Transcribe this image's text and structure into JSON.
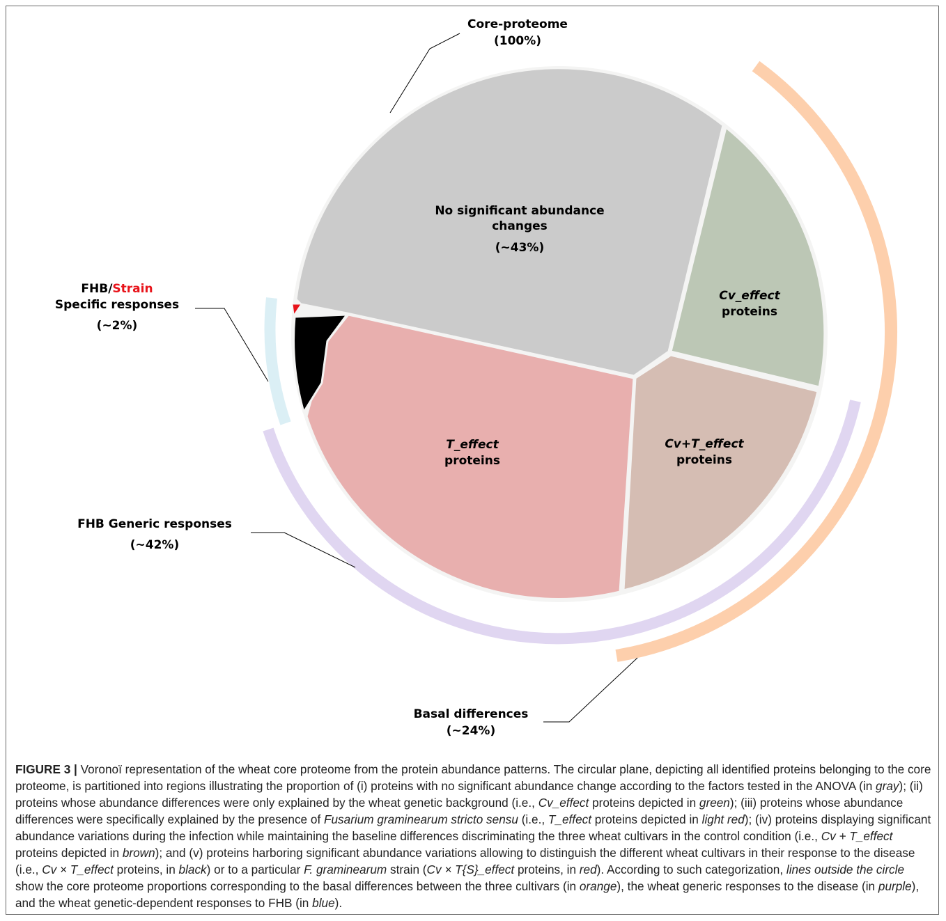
{
  "figure": {
    "labels": {
      "core": [
        "Core-proteome",
        "(100%)"
      ],
      "strain": {
        "first": "FHB/",
        "red": "Strain",
        "second": "Specific responses",
        "pct": "(~2%)"
      },
      "generic": [
        "FHB Generic responses",
        "(~42%)"
      ],
      "basal": [
        "Basal differences",
        "(~24%)"
      ]
    },
    "regions": {
      "gray": [
        "No significant abundance",
        "changes",
        "(~43%)"
      ],
      "green": [
        "Cv_effect",
        "proteins"
      ],
      "brown": [
        "Cv+T_effect",
        "proteins"
      ],
      "pink": [
        "T_effect",
        "proteins"
      ]
    },
    "caption": [
      {
        "text": "FIGURE 3 | ",
        "style": "bold"
      },
      {
        "text": "Voronoï representation of the wheat core proteome from the protein abundance patterns. The circular plane, depicting all identified proteins belonging to the core proteome, is partitioned into regions illustrating the proportion of (i) proteins with no significant abundance change according to the factors tested in the ANOVA (in "
      },
      {
        "text": "gray",
        "style": "italic"
      },
      {
        "text": "); (ii) proteins whose abundance differences were only explained by the wheat genetic background (i.e., "
      },
      {
        "text": "Cv_effect",
        "style": "italic"
      },
      {
        "text": " proteins depicted in "
      },
      {
        "text": "green",
        "style": "italic"
      },
      {
        "text": "); (iii) proteins whose abundance differences were specifically explained by the presence of "
      },
      {
        "text": "Fusarium graminearum stricto sensu",
        "style": "italic"
      },
      {
        "text": " (i.e., "
      },
      {
        "text": "T_effect",
        "style": "italic"
      },
      {
        "text": " proteins depicted in "
      },
      {
        "text": "light red",
        "style": "italic"
      },
      {
        "text": "); (iv) proteins displaying significant abundance variations during the infection while maintaining the baseline differences discriminating the three wheat cultivars in the control condition (i.e., "
      },
      {
        "text": "Cv + T_effect",
        "style": "italic"
      },
      {
        "text": " proteins depicted in "
      },
      {
        "text": "brown",
        "style": "italic"
      },
      {
        "text": "); and (v) proteins harboring significant abundance variations allowing to distinguish the different wheat cultivars in their response to the disease (i.e., "
      },
      {
        "text": "Cv × T_effect",
        "style": "italic"
      },
      {
        "text": " proteins, in "
      },
      {
        "text": "black",
        "style": "italic"
      },
      {
        "text": ") or to a particular "
      },
      {
        "text": "F. graminearum",
        "style": "italic"
      },
      {
        "text": " strain ("
      },
      {
        "text": "Cv × T{S}_effect",
        "style": "italic"
      },
      {
        "text": " proteins, in "
      },
      {
        "text": "red",
        "style": "italic"
      },
      {
        "text": "). According to such categorization, "
      },
      {
        "text": "lines outside the circle",
        "style": "italic"
      },
      {
        "text": " show the core proteome proportions corresponding to the basal differences between the three cultivars (in "
      },
      {
        "text": "orange",
        "style": "italic"
      },
      {
        "text": "), the wheat generic responses to the disease (in "
      },
      {
        "text": "purple",
        "style": "italic"
      },
      {
        "text": "), and the wheat genetic-dependent responses to FHB (in "
      },
      {
        "text": "blue",
        "style": "italic"
      },
      {
        "text": ")."
      }
    ]
  }
}
